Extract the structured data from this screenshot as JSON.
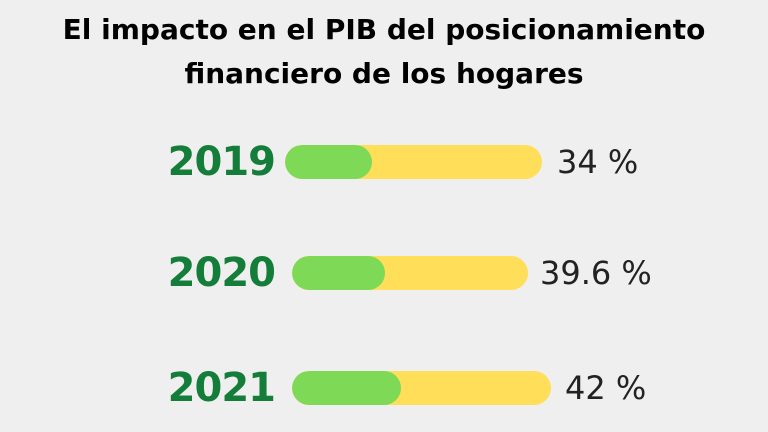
{
  "colors": {
    "background": "#efefef",
    "year_text": "#157d3a",
    "bar_fill": "#7ed957",
    "bar_track": "#ffde59",
    "title_text": "#000000"
  },
  "chart_data": {
    "type": "bar",
    "orientation": "horizontal",
    "title_lines": [
      "El impacto en el PIB del posicionamiento",
      "financiero de los hogares"
    ],
    "categories": [
      "2019",
      "2020",
      "2021"
    ],
    "values": [
      34,
      39.6,
      42
    ],
    "value_labels": [
      "34 %",
      "39.6 %",
      "42 %"
    ],
    "xlim": [
      0,
      100
    ],
    "grid": false,
    "legend": "none"
  }
}
